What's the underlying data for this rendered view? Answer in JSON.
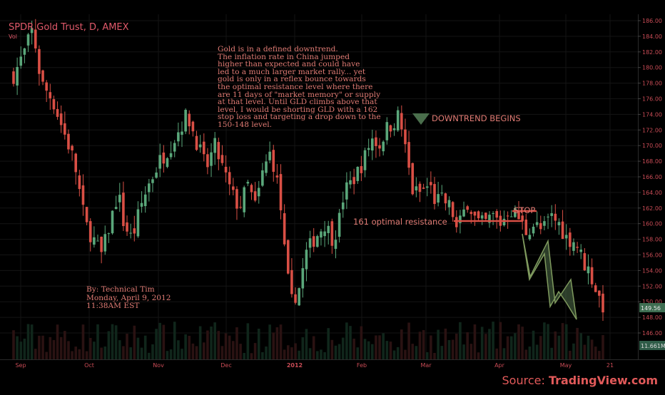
{
  "chart_data": {
    "type": "candlestick",
    "title": "SPDR Gold Trust, D, AMEX",
    "volume_label": "Vol",
    "price_axis": {
      "ticks": [
        146,
        148,
        150,
        152,
        154,
        156,
        158,
        160,
        162,
        164,
        166,
        168,
        170,
        172,
        174,
        176,
        178,
        180,
        182,
        184,
        186
      ],
      "range": [
        144,
        187
      ]
    },
    "time_axis": [
      "Sep",
      "Oct",
      "Nov",
      "Dec",
      "2012",
      "Feb",
      "Mar",
      "Apr",
      "May",
      "21"
    ],
    "last_price_label": "149.56",
    "volume_value_label": "11.661M",
    "annotations": {
      "note_lines": [
        "Gold is in a defined downtrend.",
        "The inflation rate in China jumped",
        "higher than expected and could have",
        "led to a much larger market rally... yet",
        "gold is only in a reflex bounce towards",
        "the optimal resistance level where there",
        "are 11 days of \"market memory\" or supply",
        "at that level.  Until GLD climbs above that",
        "level, I would be shorting GLD with a 162",
        "stop loss and targeting a drop down to the",
        "150-148 level."
      ],
      "downtrend_label": "DOWNTREND BEGINS",
      "resistance_label": "161 optimal resistance",
      "stop_label": "STOP",
      "resistance_level": 161,
      "stop_level": 162,
      "byline": [
        "By: Technical Tim",
        "Monday, April 9, 2012",
        "11:38AM EST"
      ]
    }
  },
  "source": {
    "prefix": "Source: ",
    "site": "TradingView.com"
  },
  "colors": {
    "up": "#5aa77a",
    "down": "#d94f45",
    "text": "#e0596a",
    "grid": "#141414",
    "axis_text": "#c84b55",
    "zigzag": "#6e8a5a"
  }
}
